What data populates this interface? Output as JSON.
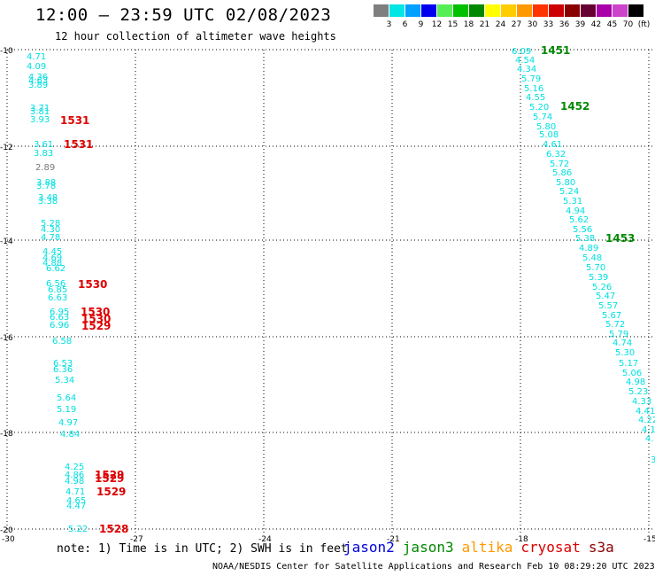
{
  "header": {
    "title": "12:00 – 23:59 UTC 02/08/2023",
    "subtitle": "12 hour collection of altimeter wave heights"
  },
  "color_scale": {
    "labels": [
      "3",
      "6",
      "9",
      "12",
      "15",
      "18",
      "21",
      "24",
      "27",
      "30",
      "33",
      "36",
      "39",
      "42",
      "45",
      "70",
      "(ft)"
    ],
    "colors": [
      "#7f7f7f",
      "#00e5e5",
      "#00a0ff",
      "#0000ee",
      "#55ee55",
      "#00c000",
      "#008800",
      "#ffff00",
      "#ffcc00",
      "#ff9900",
      "#ff3300",
      "#cc0000",
      "#880000",
      "#660033",
      "#aa00aa",
      "#cc44cc",
      "#000000"
    ]
  },
  "map": {
    "x_ticks": [
      "-30",
      "-27",
      "-24",
      "-21",
      "-18",
      "-15"
    ],
    "y_ticks": [
      "-10",
      "-12",
      "-14",
      "-16",
      "-18",
      "-20"
    ]
  },
  "tracks": {
    "left_values": [
      "4.71",
      "4.09",
      "4.36",
      "4.63",
      "3.89",
      "3.71",
      "3.81",
      "3.93",
      "3.61",
      "3.83",
      "2.89",
      "3.88",
      "3.78",
      "3.48",
      "3.38",
      "5.28",
      "4.30",
      "4.78",
      "4.45",
      "4.69",
      "4.88",
      "6.62",
      "6.56",
      "6.85",
      "6.63",
      "6.95",
      "6.63",
      "6.96",
      "6.58",
      "6.53",
      "6.36",
      "5.34",
      "5.64",
      "5.19",
      "4.97",
      "4.84",
      "4.25",
      "4.86",
      "4.98",
      "4.71",
      "4.65",
      "4.47",
      "5.22"
    ],
    "right_values": [
      "6.09",
      "4.54",
      "4.34",
      "5.79",
      "5.16",
      "4.55",
      "5.20",
      "5.74",
      "5.80",
      "5.08",
      "4.61",
      "6.32",
      "5.72",
      "5.86",
      "5.80",
      "5.24",
      "5.31",
      "4.94",
      "5.62",
      "5.56",
      "5.38",
      "4.89",
      "5.48",
      "5.70",
      "5.39",
      "5.26",
      "5.47",
      "5.57",
      "5.67",
      "5.72",
      "5.79",
      "4.74",
      "5.30",
      "5.17",
      "5.06",
      "4.98",
      "5.23",
      "4.33",
      "4.41",
      "4.22",
      "4.1",
      "4.",
      "3"
    ],
    "time_labels": [
      {
        "text": "1531",
        "color": "#dd0000"
      },
      {
        "text": "1531",
        "color": "#dd0000"
      },
      {
        "text": "1530",
        "color": "#dd0000"
      },
      {
        "text": "1530",
        "color": "#dd0000"
      },
      {
        "text": "1530",
        "color": "#dd0000"
      },
      {
        "text": "1529",
        "color": "#dd0000"
      },
      {
        "text": "1529",
        "color": "#dd0000"
      },
      {
        "text": "1529",
        "color": "#dd0000"
      },
      {
        "text": "1529",
        "color": "#dd0000"
      },
      {
        "text": "1528",
        "color": "#dd0000"
      },
      {
        "text": "1451",
        "color": "#008800"
      },
      {
        "text": "1452",
        "color": "#008800"
      },
      {
        "text": "1453",
        "color": "#008800"
      }
    ]
  },
  "note": "note: 1) Time is in UTC; 2) SWH is in feet",
  "legend": [
    {
      "name": "jason2",
      "color": "#0000dd"
    },
    {
      "name": "jason3",
      "color": "#008800"
    },
    {
      "name": "altika",
      "color": "#ff9900"
    },
    {
      "name": "cryosat",
      "color": "#dd0000"
    },
    {
      "name": "s3a",
      "color": "#880000"
    }
  ],
  "footer": "NOAA/NESDIS Center for Satellite Applications and Research   Feb 10 08:29:20 UTC 2023"
}
